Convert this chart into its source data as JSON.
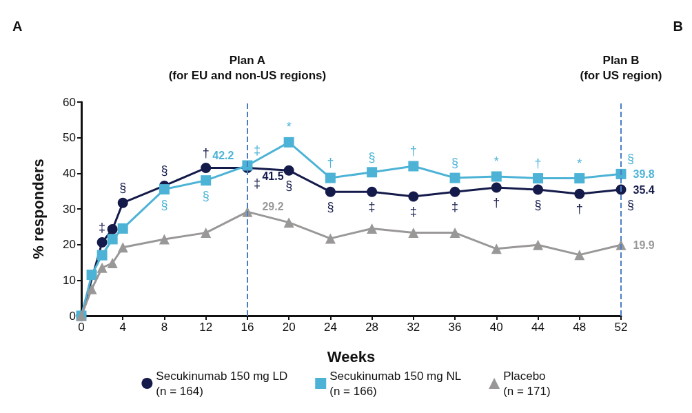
{
  "chart_data": {
    "type": "line",
    "xlabel": "Weeks",
    "ylabel": "% responders",
    "xlim": [
      0,
      52
    ],
    "xticks": [
      0,
      4,
      8,
      12,
      16,
      20,
      24,
      28,
      32,
      36,
      40,
      44,
      48,
      52
    ],
    "ylim": [
      0,
      60
    ],
    "yticks": [
      0,
      10,
      20,
      30,
      40,
      50,
      60
    ],
    "grid": false,
    "legend": "bottom",
    "line_style": "solid",
    "series": [
      {
        "name": "Secukinumab 150 mg LD\n(n = 164)",
        "color": "#141a4a",
        "marker": "circle",
        "x": [
          0,
          2,
          3,
          4,
          8,
          12,
          16,
          20,
          24,
          28,
          32,
          36,
          40,
          44,
          48,
          52
        ],
        "values": [
          0,
          20.6,
          24.3,
          31.7,
          36.5,
          41.5,
          41.5,
          40.8,
          34.8,
          34.8,
          33.5,
          34.8,
          36,
          35.4,
          34.2,
          35.4
        ],
        "value_labels": [
          null,
          null,
          null,
          null,
          null,
          null,
          "41.5",
          null,
          null,
          null,
          null,
          null,
          null,
          null,
          null,
          "35.4"
        ]
      },
      {
        "name": "Secukinumab 150 mg NL\n(n = 166)",
        "color": "#4db3d6",
        "marker": "square",
        "x": [
          0,
          1,
          2,
          3,
          4,
          8,
          12,
          16,
          20,
          24,
          28,
          32,
          36,
          40,
          44,
          48,
          52
        ],
        "values": [
          0,
          11.5,
          17,
          21.5,
          24.5,
          35.5,
          38,
          42.2,
          48.7,
          38.7,
          40.3,
          42,
          38.7,
          39.1,
          38.6,
          38.6,
          39.8
        ],
        "value_labels": [
          null,
          null,
          null,
          null,
          null,
          null,
          null,
          "42.2",
          null,
          null,
          null,
          null,
          null,
          null,
          null,
          null,
          "39.8"
        ]
      },
      {
        "name": "Placebo\n(n = 171)",
        "color": "#9a9797",
        "marker": "triangle",
        "x": [
          0,
          1,
          2,
          3,
          4,
          8,
          12,
          16,
          20,
          24,
          28,
          32,
          36,
          40,
          44,
          48,
          52
        ],
        "values": [
          0,
          7.5,
          13.5,
          14.8,
          19.2,
          21.5,
          23.3,
          29.2,
          26.2,
          21.7,
          24.5,
          23.3,
          23.3,
          18.8,
          19.9,
          17.1,
          19.9
        ],
        "value_labels": [
          null,
          null,
          null,
          null,
          null,
          null,
          null,
          "29.2",
          null,
          null,
          null,
          null,
          null,
          null,
          null,
          null,
          "19.9"
        ]
      }
    ],
    "ref_lines": [
      {
        "axis": "x",
        "value": 16,
        "label": "Plan A\n(for EU and non-US regions)",
        "color": "#4a7cc4",
        "line_style": "dashed"
      },
      {
        "axis": "x",
        "value": 52,
        "label": "Plan B\n(for US region)",
        "color": "#4a7cc4",
        "line_style": "dashed"
      }
    ],
    "annotations": [
      "A",
      "B",
      {
        "text": "‡",
        "x": 2,
        "y": 20.6
      },
      {
        "text": "§",
        "x": 4,
        "y": 31.7
      },
      {
        "text": "§",
        "x": 8,
        "y": 36.5
      },
      {
        "text": "†",
        "x": 12,
        "y": 41.5
      },
      {
        "text": "‡",
        "x": 16,
        "y": 41.5
      },
      {
        "text": "§",
        "x": 20,
        "y": 40.8
      },
      {
        "text": "§",
        "x": 24,
        "y": 34.8
      },
      {
        "text": "‡",
        "x": 28,
        "y": 34.8
      },
      {
        "text": "‡",
        "x": 32,
        "y": 33.5
      },
      {
        "text": "‡",
        "x": 36,
        "y": 34.8
      },
      {
        "text": "†",
        "x": 40,
        "y": 36
      },
      {
        "text": "§",
        "x": 44,
        "y": 35.4
      },
      {
        "text": "†",
        "x": 48,
        "y": 34.2
      },
      {
        "text": "§",
        "x": 52,
        "y": 35.4
      },
      {
        "text": "§",
        "x": 8,
        "y": 35.5
      },
      {
        "text": "§",
        "x": 12,
        "y": 38
      },
      {
        "text": "‡",
        "x": 16,
        "y": 42.2
      },
      {
        "text": "*",
        "x": 20,
        "y": 48.7
      },
      {
        "text": "†",
        "x": 24,
        "y": 38.7
      },
      {
        "text": "§",
        "x": 28,
        "y": 40.3
      },
      {
        "text": "†",
        "x": 32,
        "y": 42
      },
      {
        "text": "§",
        "x": 36,
        "y": 38.7
      },
      {
        "text": "*",
        "x": 40,
        "y": 39.1
      },
      {
        "text": "†",
        "x": 44,
        "y": 38.6
      },
      {
        "text": "*",
        "x": 48,
        "y": 38.6
      },
      {
        "text": "§",
        "x": 52,
        "y": 39.8
      }
    ]
  }
}
